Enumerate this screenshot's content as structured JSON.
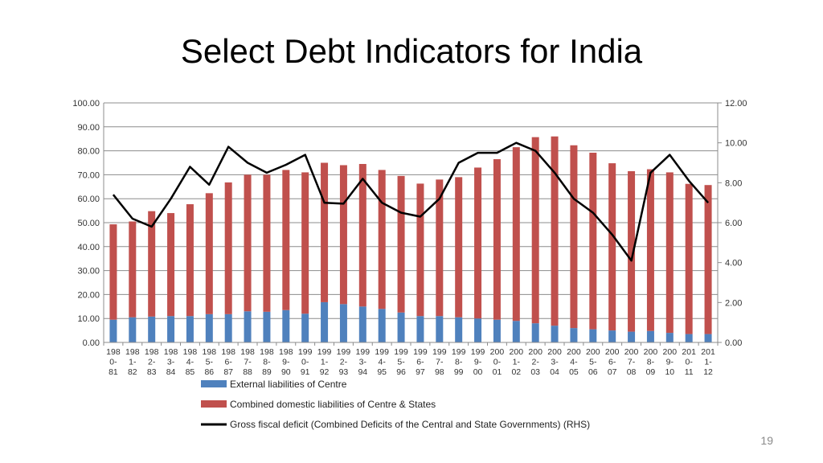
{
  "slide": {
    "title": "Select Debt Indicators for India",
    "number": "19"
  },
  "colors": {
    "external": "#4F81BD",
    "domestic": "#C0504D",
    "deficit": "#000000"
  },
  "chart_data": {
    "type": "bar",
    "stacked": true,
    "title": "",
    "xlabel": "",
    "ylabel": "",
    "ylim": [
      0,
      100
    ],
    "y_ticks": [
      "0.00",
      "10.00",
      "20.00",
      "30.00",
      "40.00",
      "50.00",
      "60.00",
      "70.00",
      "80.00",
      "90.00",
      "100.00"
    ],
    "y2lim": [
      0,
      12
    ],
    "y2_ticks": [
      "0.00",
      "2.00",
      "4.00",
      "6.00",
      "8.00",
      "10.00",
      "12.00"
    ],
    "grid": true,
    "legend_position": "bottom",
    "categories": [
      [
        "198",
        "0-",
        "81"
      ],
      [
        "198",
        "1-",
        "82"
      ],
      [
        "198",
        "2-",
        "83"
      ],
      [
        "198",
        "3-",
        "84"
      ],
      [
        "198",
        "4-",
        "85"
      ],
      [
        "198",
        "5-",
        "86"
      ],
      [
        "198",
        "6-",
        "87"
      ],
      [
        "198",
        "7-",
        "88"
      ],
      [
        "198",
        "8-",
        "89"
      ],
      [
        "198",
        "9-",
        "90"
      ],
      [
        "199",
        "0-",
        "91"
      ],
      [
        "199",
        "1-",
        "92"
      ],
      [
        "199",
        "2-",
        "93"
      ],
      [
        "199",
        "3-",
        "94"
      ],
      [
        "199",
        "4-",
        "95"
      ],
      [
        "199",
        "5-",
        "96"
      ],
      [
        "199",
        "6-",
        "97"
      ],
      [
        "199",
        "7-",
        "98"
      ],
      [
        "199",
        "8-",
        "99"
      ],
      [
        "199",
        "9-",
        "00"
      ],
      [
        "200",
        "0-",
        "01"
      ],
      [
        "200",
        "1-",
        "02"
      ],
      [
        "200",
        "2-",
        "03"
      ],
      [
        "200",
        "3-",
        "04"
      ],
      [
        "200",
        "4-",
        "05"
      ],
      [
        "200",
        "5-",
        "06"
      ],
      [
        "200",
        "6-",
        "07"
      ],
      [
        "200",
        "7-",
        "08"
      ],
      [
        "200",
        "8-",
        "09"
      ],
      [
        "200",
        "9-",
        "10"
      ],
      [
        "201",
        "0-",
        "11"
      ],
      [
        "201",
        "1-",
        "12"
      ]
    ],
    "series": [
      {
        "name": "External liabilities of Centre",
        "kind": "bar",
        "axis": "left",
        "values": [
          9.5,
          10.5,
          10.8,
          11.0,
          11.0,
          11.8,
          11.8,
          13.0,
          12.8,
          13.5,
          12.0,
          16.8,
          16.0,
          15.0,
          14.0,
          12.5,
          11.0,
          11.0,
          10.5,
          10.0,
          9.5,
          9.0,
          8.0,
          7.0,
          6.0,
          5.5,
          5.0,
          4.5,
          4.8,
          4.0,
          3.5,
          3.5
        ]
      },
      {
        "name": "Combined domestic liabilities of Centre & States",
        "kind": "bar",
        "axis": "left",
        "values": [
          39.8,
          40.0,
          44.0,
          43.0,
          46.7,
          50.5,
          55.0,
          57.0,
          57.2,
          58.5,
          59.0,
          58.2,
          58.0,
          59.5,
          58.0,
          57.0,
          55.3,
          57.0,
          58.5,
          63.0,
          67.0,
          72.5,
          77.7,
          79.0,
          76.3,
          73.7,
          69.8,
          67.0,
          67.5,
          67.0,
          62.7,
          62.2
        ]
      },
      {
        "name": "Gross fiscal deficit (Combined Deficits of the Central and State Governments) (RHS)",
        "kind": "line",
        "axis": "right",
        "values": [
          7.4,
          6.2,
          5.8,
          7.2,
          8.8,
          7.9,
          9.8,
          9.0,
          8.5,
          8.9,
          9.4,
          7.0,
          6.95,
          8.2,
          7.0,
          6.5,
          6.3,
          7.2,
          9.0,
          9.5,
          9.5,
          10.0,
          9.6,
          8.5,
          7.2,
          6.5,
          5.4,
          4.1,
          8.5,
          9.4,
          8.1,
          7.0
        ]
      }
    ]
  }
}
